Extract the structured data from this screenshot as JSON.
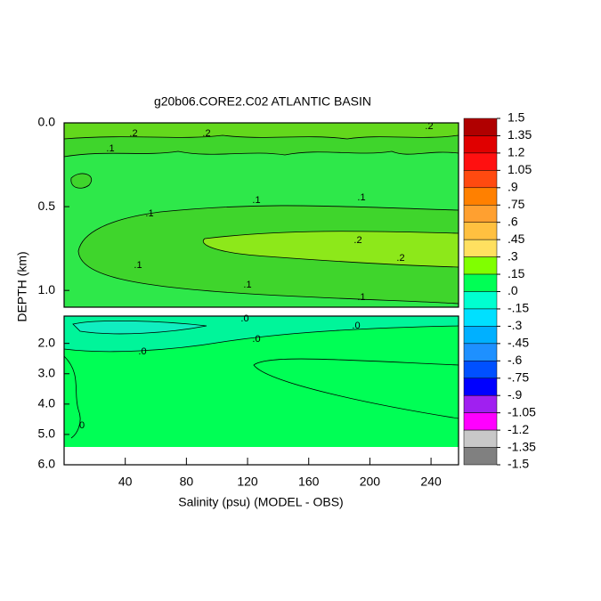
{
  "chart_data": {
    "type": "contour",
    "title": "g20b06.CORE2.C02 ATLANTIC BASIN",
    "xlabel": "Salinity (psu) (MODEL - OBS)",
    "ylabel": "DEPTH (km)",
    "xlim": [
      0,
      258
    ],
    "xticks": [
      40,
      80,
      120,
      160,
      200,
      240
    ],
    "panels": [
      {
        "ylim": [
          0,
          1.1
        ],
        "yticks": [
          {
            "value": 0,
            "label": "0.0"
          },
          {
            "value": 0.5,
            "label": "0.5"
          },
          {
            "value": 1,
            "label": "1.0"
          }
        ],
        "regions": [
          {
            "value": 0.05,
            "color": "#2ee84a"
          },
          {
            "value": 0.1,
            "color": "#3fd52c"
          },
          {
            "value": 0.2,
            "color": "#8de81a"
          },
          {
            "value": 0.15,
            "color": "#63d81c"
          }
        ],
        "contour_labels": [
          {
            "value": 0.2,
            "label": ".2"
          },
          {
            "value": 0.2,
            "label": ".2"
          },
          {
            "value": 0.2,
            "label": ".2"
          },
          {
            "value": 0.1,
            "label": ".1"
          },
          {
            "value": 0.1,
            "label": ".1"
          },
          {
            "value": 0.1,
            "label": ".1"
          },
          {
            "value": 0.1,
            "label": ".1"
          },
          {
            "value": 0.1,
            "label": ".1"
          },
          {
            "value": 0.1,
            "label": ".1"
          },
          {
            "value": 0.1,
            "label": ".1"
          },
          {
            "value": 0.2,
            "label": ".2"
          },
          {
            "value": 0.2,
            "label": ".2"
          }
        ]
      },
      {
        "ylim": [
          1.1,
          6
        ],
        "yticks": [
          {
            "value": 2,
            "label": "2.0"
          },
          {
            "value": 3,
            "label": "3.0"
          },
          {
            "value": 4,
            "label": "4.0"
          },
          {
            "value": 5,
            "label": "5.0"
          },
          {
            "value": 6,
            "label": "6.0"
          }
        ],
        "regions": [
          {
            "value": 0,
            "color": "#00ff55"
          },
          {
            "value": -0.05,
            "color": "#00f59a"
          },
          {
            "value": -0.1,
            "color": "#10eec0"
          }
        ],
        "contour_labels": [
          {
            "value": 0,
            "label": ".0"
          },
          {
            "value": 0,
            "label": ".0"
          },
          {
            "value": 0,
            "label": ".0"
          },
          {
            "value": 0,
            "label": ".0"
          },
          {
            "value": 0,
            "label": "0"
          }
        ]
      }
    ],
    "colorbar": {
      "ticks": [
        {
          "value": 1.5,
          "label": "1.5"
        },
        {
          "value": 1.35,
          "label": "1.35"
        },
        {
          "value": 1.2,
          "label": "1.2"
        },
        {
          "value": 1.05,
          "label": "1.05"
        },
        {
          "value": 0.9,
          "label": ".9"
        },
        {
          "value": 0.75,
          "label": ".75"
        },
        {
          "value": 0.6,
          "label": ".6"
        },
        {
          "value": 0.45,
          "label": ".45"
        },
        {
          "value": 0.3,
          "label": ".3"
        },
        {
          "value": 0.15,
          "label": ".15"
        },
        {
          "value": 0,
          "label": ".0"
        },
        {
          "value": -0.15,
          "label": "-.15"
        },
        {
          "value": -0.3,
          "label": "-.3"
        },
        {
          "value": -0.45,
          "label": "-.45"
        },
        {
          "value": -0.6,
          "label": "-.6"
        },
        {
          "value": -0.75,
          "label": "-.75"
        },
        {
          "value": -0.9,
          "label": "-.9"
        },
        {
          "value": -1.05,
          "label": "-1.05"
        },
        {
          "value": -1.2,
          "label": "-1.2"
        },
        {
          "value": -1.35,
          "label": "-1.35"
        },
        {
          "value": -1.5,
          "label": "-1.5"
        }
      ],
      "colors": [
        "#b00000",
        "#e00000",
        "#ff1010",
        "#ff4a10",
        "#ff8000",
        "#ffa030",
        "#ffc040",
        "#ffe060",
        "#80ff00",
        "#00ff55",
        "#00ffd0",
        "#00e0ff",
        "#00b0ff",
        "#1e90ff",
        "#0050ff",
        "#0000ff",
        "#a020f0",
        "#ff00ff",
        "#c8c8c8",
        "#808080"
      ]
    }
  }
}
